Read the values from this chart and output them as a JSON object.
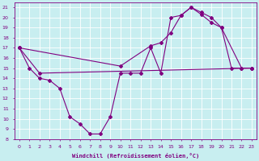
{
  "xlabel": "Windchill (Refroidissement éolien,°C)",
  "xlim": [
    -0.5,
    23.5
  ],
  "ylim": [
    8,
    21.5
  ],
  "yticks": [
    8,
    9,
    10,
    11,
    12,
    13,
    14,
    15,
    16,
    17,
    18,
    19,
    20,
    21
  ],
  "xticks": [
    0,
    1,
    2,
    3,
    4,
    5,
    6,
    7,
    8,
    9,
    10,
    11,
    12,
    13,
    14,
    15,
    16,
    17,
    18,
    19,
    20,
    21,
    22,
    23
  ],
  "bg_color": "#c8eef0",
  "line_color": "#800080",
  "grid_color": "#ffffff",
  "line1_x": [
    0,
    1,
    2,
    3,
    4,
    5,
    6,
    7,
    8,
    9,
    10,
    11,
    12,
    13,
    14,
    15,
    16,
    17,
    18,
    19,
    20,
    21,
    22,
    23
  ],
  "line1_y": [
    17,
    15,
    14,
    13.8,
    13,
    10.2,
    9.5,
    8.5,
    8.5,
    10.2,
    14.5,
    14.5,
    14.5,
    17,
    14.5,
    20,
    20.2,
    21,
    20.5,
    20,
    19,
    15,
    15,
    15
  ],
  "line2_x": [
    0,
    2,
    23
  ],
  "line2_y": [
    17,
    14.5,
    15
  ],
  "line3_x": [
    0,
    10,
    13,
    14,
    15,
    16,
    17,
    18,
    19,
    20,
    22,
    23
  ],
  "line3_y": [
    17,
    15.2,
    17.2,
    17.5,
    18.5,
    20.2,
    21,
    20.3,
    19.5,
    19,
    15,
    15
  ]
}
